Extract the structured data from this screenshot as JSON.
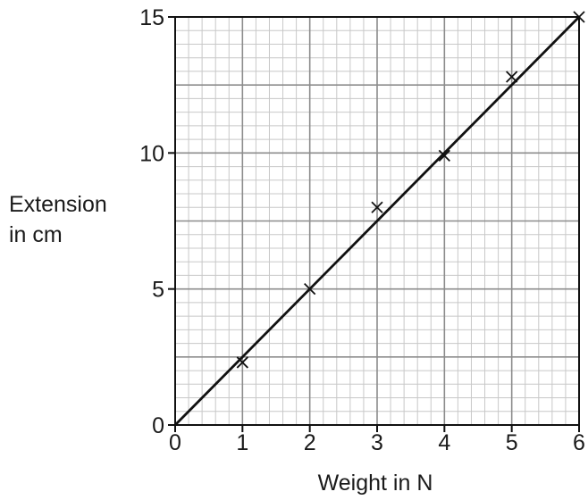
{
  "chart_data": {
    "type": "scatter",
    "title": "",
    "xlabel": "Weight in N",
    "ylabel": [
      "Extension",
      "in cm"
    ],
    "xlim": [
      0,
      6
    ],
    "ylim": [
      0,
      15
    ],
    "x_ticks": [
      "0",
      "1",
      "2",
      "3",
      "4",
      "5",
      "6"
    ],
    "y_ticks": [
      "0",
      "5",
      "10",
      "15"
    ],
    "grid": true,
    "points": [
      {
        "x": 1,
        "y": 2.3
      },
      {
        "x": 2,
        "y": 5.0
      },
      {
        "x": 3,
        "y": 8.0
      },
      {
        "x": 4,
        "y": 9.9
      },
      {
        "x": 5,
        "y": 12.8
      },
      {
        "x": 6,
        "y": 15.0
      }
    ],
    "best_fit_line": {
      "x": [
        0,
        6
      ],
      "y": [
        0,
        15
      ]
    },
    "colors": {
      "grid_minor": "#c8c8c8",
      "grid_major": "#8c8c8c",
      "line": "#111111"
    }
  }
}
